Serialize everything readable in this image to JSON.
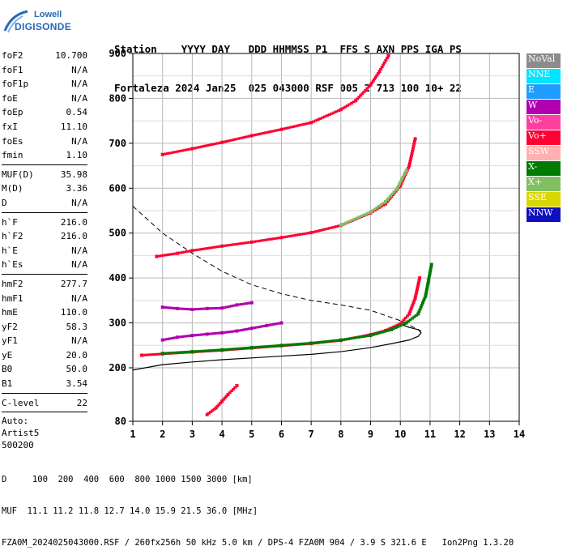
{
  "logo": {
    "line1": "Lowell",
    "line2": "DIGISONDE"
  },
  "header": {
    "labels": "Station    YYYY DAY   DDD HHMMSS P1  FFS S AXN PPS IGA PS",
    "values": "Fortaleza 2024 Jan25  025 043000 RSF 005 2 713 100 10+ 22"
  },
  "params": {
    "group1": [
      {
        "name": "foF2",
        "value": "10.700"
      },
      {
        "name": "foF1",
        "value": "N/A"
      },
      {
        "name": "foF1p",
        "value": "N/A"
      },
      {
        "name": "foE",
        "value": "N/A"
      },
      {
        "name": "foEp",
        "value": "0.54"
      },
      {
        "name": "fxI",
        "value": "11.10"
      },
      {
        "name": "foEs",
        "value": "N/A"
      },
      {
        "name": "fmin",
        "value": "1.10"
      }
    ],
    "group2": [
      {
        "name": "MUF(D)",
        "value": "35.98"
      },
      {
        "name": "M(D)",
        "value": "3.36"
      },
      {
        "name": "D",
        "value": "N/A"
      }
    ],
    "group3": [
      {
        "name": "h`F",
        "value": "216.0"
      },
      {
        "name": "h`F2",
        "value": "216.0"
      },
      {
        "name": "h`E",
        "value": "N/A"
      },
      {
        "name": "h`Es",
        "value": "N/A"
      }
    ],
    "group4": [
      {
        "name": "hmF2",
        "value": "277.7"
      },
      {
        "name": "hmF1",
        "value": "N/A"
      },
      {
        "name": "hmE",
        "value": "110.0"
      },
      {
        "name": "yF2",
        "value": "58.3"
      },
      {
        "name": "yF1",
        "value": "N/A"
      },
      {
        "name": "yE",
        "value": "20.0"
      },
      {
        "name": "B0",
        "value": "50.0"
      },
      {
        "name": "B1",
        "value": "3.54"
      }
    ],
    "group5": [
      {
        "name": "C-level",
        "value": "22"
      }
    ],
    "autoscale": [
      "Auto:",
      "Artist5",
      "500200"
    ]
  },
  "legend": [
    {
      "label": "NoVal",
      "bg": "#8c8c8c",
      "fg": "#ffffff"
    },
    {
      "label": "NNE",
      "bg": "#00e5ff",
      "fg": "#ffffff"
    },
    {
      "label": "E",
      "bg": "#1f9dff",
      "fg": "#ffffff"
    },
    {
      "label": "W",
      "bg": "#b000b0",
      "fg": "#ffffff"
    },
    {
      "label": "Vo-",
      "bg": "#ff3fa0",
      "fg": "#ffffff"
    },
    {
      "label": "Vo+",
      "bg": "#ff0033",
      "fg": "#ffffff"
    },
    {
      "label": "SSW",
      "bg": "#ffb0b0",
      "fg": "#ffffff"
    },
    {
      "label": "X-",
      "bg": "#007a00",
      "fg": "#ffffff"
    },
    {
      "label": "X+",
      "bg": "#80c060",
      "fg": "#ffffff"
    },
    {
      "label": "SSE",
      "bg": "#d8d800",
      "fg": "#ffffff"
    },
    {
      "label": "NNW",
      "bg": "#1010c0",
      "fg": "#ffffff"
    }
  ],
  "chart_data": {
    "type": "scatter",
    "xlabel": "",
    "ylabel": "",
    "xlim": [
      1,
      14
    ],
    "ylim": [
      80,
      900
    ],
    "xticks": [
      1,
      2,
      3,
      4,
      5,
      6,
      7,
      8,
      9,
      10,
      11,
      12,
      13,
      14
    ],
    "yticks": [
      80,
      200,
      300,
      400,
      500,
      600,
      700,
      800,
      900
    ],
    "traces": [
      {
        "name": "F2 O-trace 1st hop",
        "color": "#ff0033",
        "points": [
          [
            1.3,
            228
          ],
          [
            2.0,
            231
          ],
          [
            3.0,
            235
          ],
          [
            4.0,
            239
          ],
          [
            5.0,
            244
          ],
          [
            6.0,
            249
          ],
          [
            7.0,
            254
          ],
          [
            8.0,
            261
          ],
          [
            9.0,
            274
          ],
          [
            9.5,
            283
          ],
          [
            10.0,
            298
          ],
          [
            10.3,
            320
          ],
          [
            10.5,
            355
          ],
          [
            10.65,
            400
          ]
        ]
      },
      {
        "name": "F2 X-trace 1st hop",
        "color": "#007a00",
        "points": [
          [
            2.0,
            232
          ],
          [
            3.0,
            236
          ],
          [
            4.0,
            240
          ],
          [
            5.0,
            245
          ],
          [
            6.0,
            250
          ],
          [
            7.0,
            255
          ],
          [
            8.0,
            262
          ],
          [
            9.0,
            272
          ],
          [
            9.7,
            285
          ],
          [
            10.2,
            300
          ],
          [
            10.6,
            320
          ],
          [
            10.85,
            360
          ],
          [
            10.95,
            395
          ],
          [
            11.05,
            430
          ]
        ]
      },
      {
        "name": "F2 O-trace 2nd hop",
        "color": "#ff0033",
        "points": [
          [
            1.8,
            448
          ],
          [
            2.5,
            455
          ],
          [
            3.0,
            461
          ],
          [
            4.0,
            471
          ],
          [
            5.0,
            480
          ],
          [
            6.0,
            490
          ],
          [
            7.0,
            501
          ],
          [
            8.0,
            517
          ],
          [
            9.0,
            545
          ],
          [
            9.5,
            565
          ],
          [
            10.0,
            605
          ],
          [
            10.3,
            650
          ],
          [
            10.5,
            710
          ]
        ]
      },
      {
        "name": "F2 X-trace 2nd hop",
        "color": "#80c060",
        "points": [
          [
            8.0,
            518
          ],
          [
            9.0,
            547
          ],
          [
            9.5,
            570
          ],
          [
            9.9,
            600
          ],
          [
            10.2,
            640
          ]
        ]
      },
      {
        "name": "F2 O-trace 3rd hop",
        "color": "#ff0033",
        "points": [
          [
            2.0,
            675
          ],
          [
            3.0,
            688
          ],
          [
            4.0,
            702
          ],
          [
            5.0,
            717
          ],
          [
            6.0,
            731
          ],
          [
            7.0,
            746
          ],
          [
            8.0,
            775
          ],
          [
            8.5,
            795
          ],
          [
            9.0,
            830
          ],
          [
            9.3,
            860
          ],
          [
            9.6,
            895
          ]
        ]
      },
      {
        "name": "Es/W echoes 260-300",
        "color": "#b000b0",
        "points": [
          [
            2.0,
            262
          ],
          [
            2.5,
            268
          ],
          [
            3.0,
            272
          ],
          [
            3.5,
            275
          ],
          [
            4.0,
            278
          ],
          [
            4.5,
            282
          ],
          [
            5.0,
            288
          ],
          [
            5.5,
            294
          ],
          [
            6.0,
            300
          ]
        ]
      },
      {
        "name": "Es/W echoes 330",
        "color": "#b000b0",
        "points": [
          [
            2.0,
            335
          ],
          [
            2.5,
            332
          ],
          [
            3.0,
            330
          ],
          [
            3.5,
            332
          ],
          [
            4.0,
            333
          ],
          [
            4.5,
            340
          ],
          [
            5.0,
            345
          ]
        ]
      },
      {
        "name": "Low echoes",
        "color": "#ff0033",
        "points": [
          [
            3.5,
            95
          ],
          [
            3.8,
            110
          ],
          [
            4.0,
            125
          ],
          [
            4.2,
            140
          ],
          [
            4.5,
            160
          ]
        ]
      }
    ],
    "profile": {
      "name": "Electron density profile",
      "points": [
        [
          1.0,
          195
        ],
        [
          2.0,
          207
        ],
        [
          3.0,
          213
        ],
        [
          4.0,
          218
        ],
        [
          5.0,
          222
        ],
        [
          6.0,
          226
        ],
        [
          7.0,
          230
        ],
        [
          8.0,
          236
        ],
        [
          9.0,
          245
        ],
        [
          9.8,
          255
        ],
        [
          10.3,
          262
        ],
        [
          10.6,
          270
        ],
        [
          10.7,
          278
        ],
        [
          10.6,
          285
        ],
        [
          10.3,
          290
        ],
        [
          10.0,
          297
        ]
      ]
    },
    "muf_curve": {
      "name": "MUF curve",
      "points": [
        [
          1.0,
          560
        ],
        [
          2.0,
          500
        ],
        [
          3.0,
          455
        ],
        [
          4.0,
          415
        ],
        [
          5.0,
          385
        ],
        [
          6.0,
          365
        ],
        [
          7.0,
          350
        ],
        [
          8.0,
          340
        ],
        [
          9.0,
          328
        ],
        [
          10.0,
          305
        ],
        [
          10.7,
          282
        ]
      ]
    }
  },
  "footer": {
    "line1": "D     100  200  400  600  800 1000 1500 3000 [km]",
    "line2": "MUF  11.1 11.2 11.8 12.7 14.0 15.9 21.5 36.0 [MHz]",
    "line3": "FZA0M_2024025043000.RSF / 260fx256h 50 kHz 5.0 km / DPS-4 FZA0M 904 / 3.9 S 321.6 E   Ion2Png 1.3.20"
  }
}
